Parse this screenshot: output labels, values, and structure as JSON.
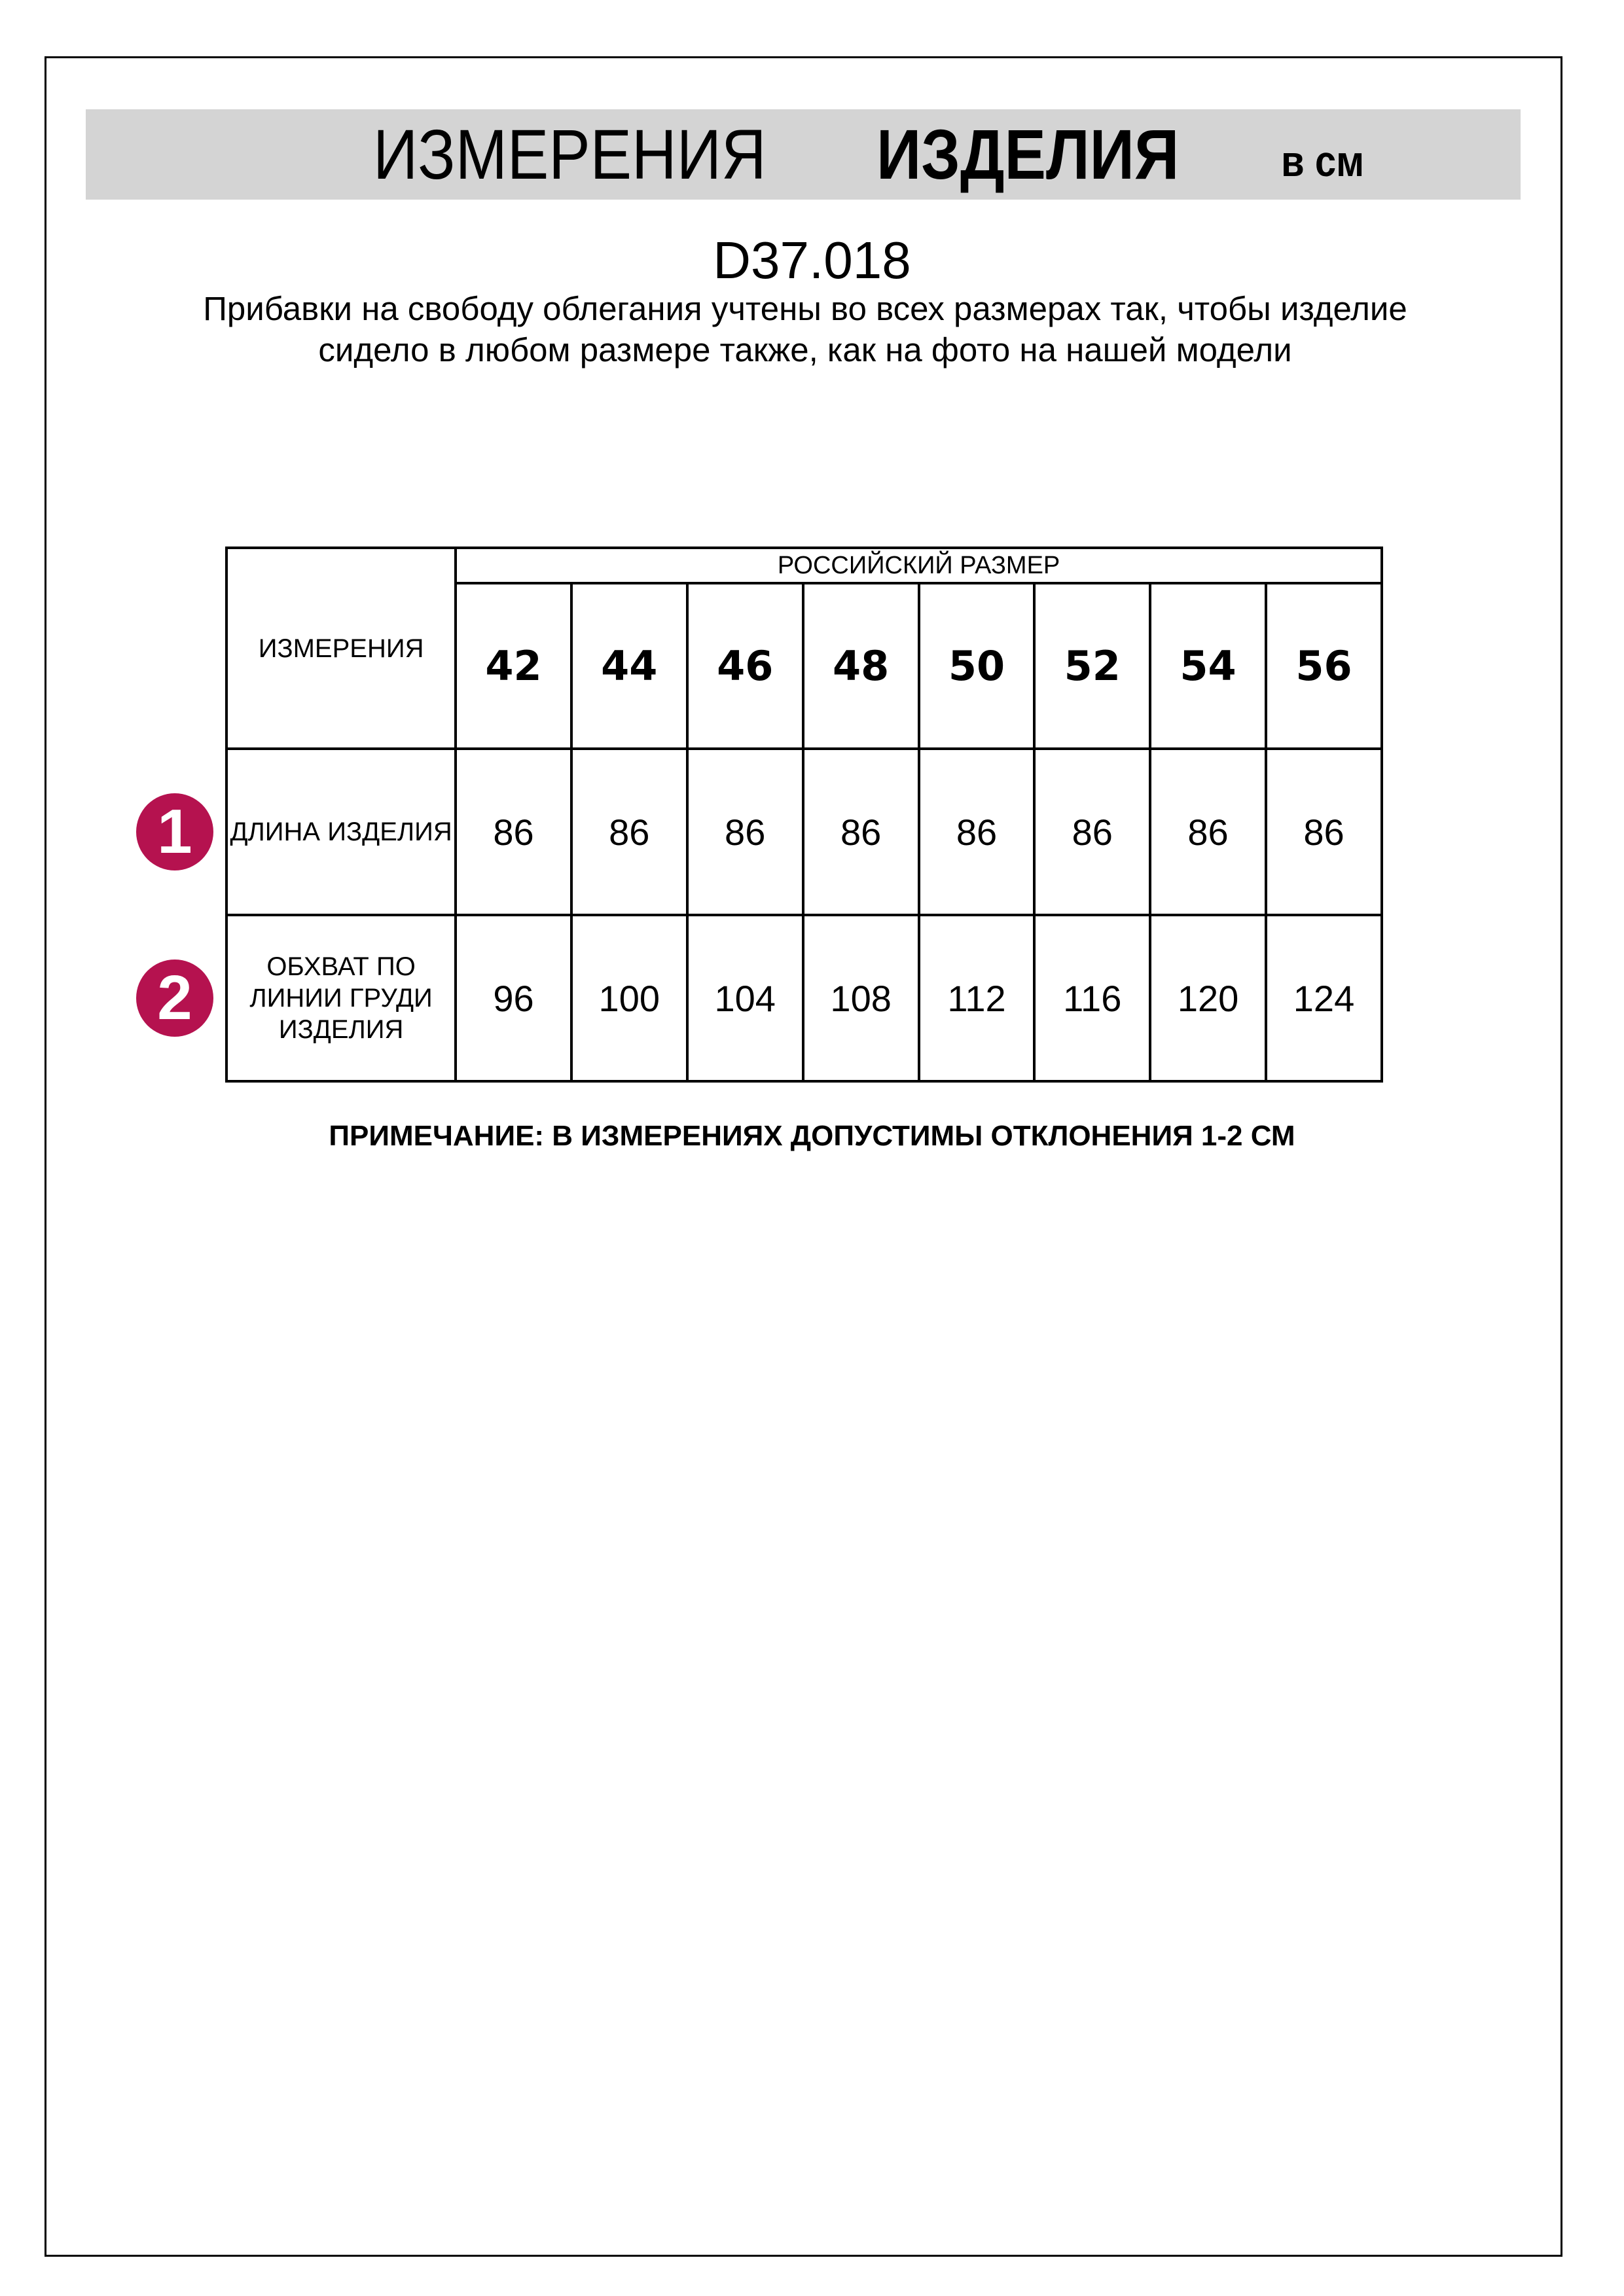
{
  "header": {
    "title_part1": "ИЗМЕРЕНИЯ",
    "title_part2": "ИЗДЕЛИЯ",
    "unit": "в см",
    "band_color": "#d4d4d4"
  },
  "product_code": "D37.018",
  "description": "Прибавки на свободу облегания учтены во всех размерах так, чтобы изделие сидело в любом размере также, как на фото на нашей модели",
  "table": {
    "corner_label": "ИЗМЕРЕНИЯ",
    "group_header": "РОССИЙСКИЙ РАЗМЕР",
    "sizes": [
      "42",
      "44",
      "46",
      "48",
      "50",
      "52",
      "54",
      "56"
    ],
    "rows": [
      {
        "marker": "1",
        "label": "ДЛИНА ИЗДЕЛИЯ",
        "values": [
          "86",
          "86",
          "86",
          "86",
          "86",
          "86",
          "86",
          "86"
        ]
      },
      {
        "marker": "2",
        "label": "ОБХВАТ ПО ЛИНИИ ГРУДИ ИЗДЕЛИЯ",
        "values": [
          "96",
          "100",
          "104",
          "108",
          "112",
          "116",
          "120",
          "124"
        ]
      }
    ]
  },
  "marker_color": "#b5124f",
  "note": "ПРИМЕЧАНИЕ: В ИЗМЕРЕНИЯХ ДОПУСТИМЫ ОТКЛОНЕНИЯ 1-2 СМ"
}
